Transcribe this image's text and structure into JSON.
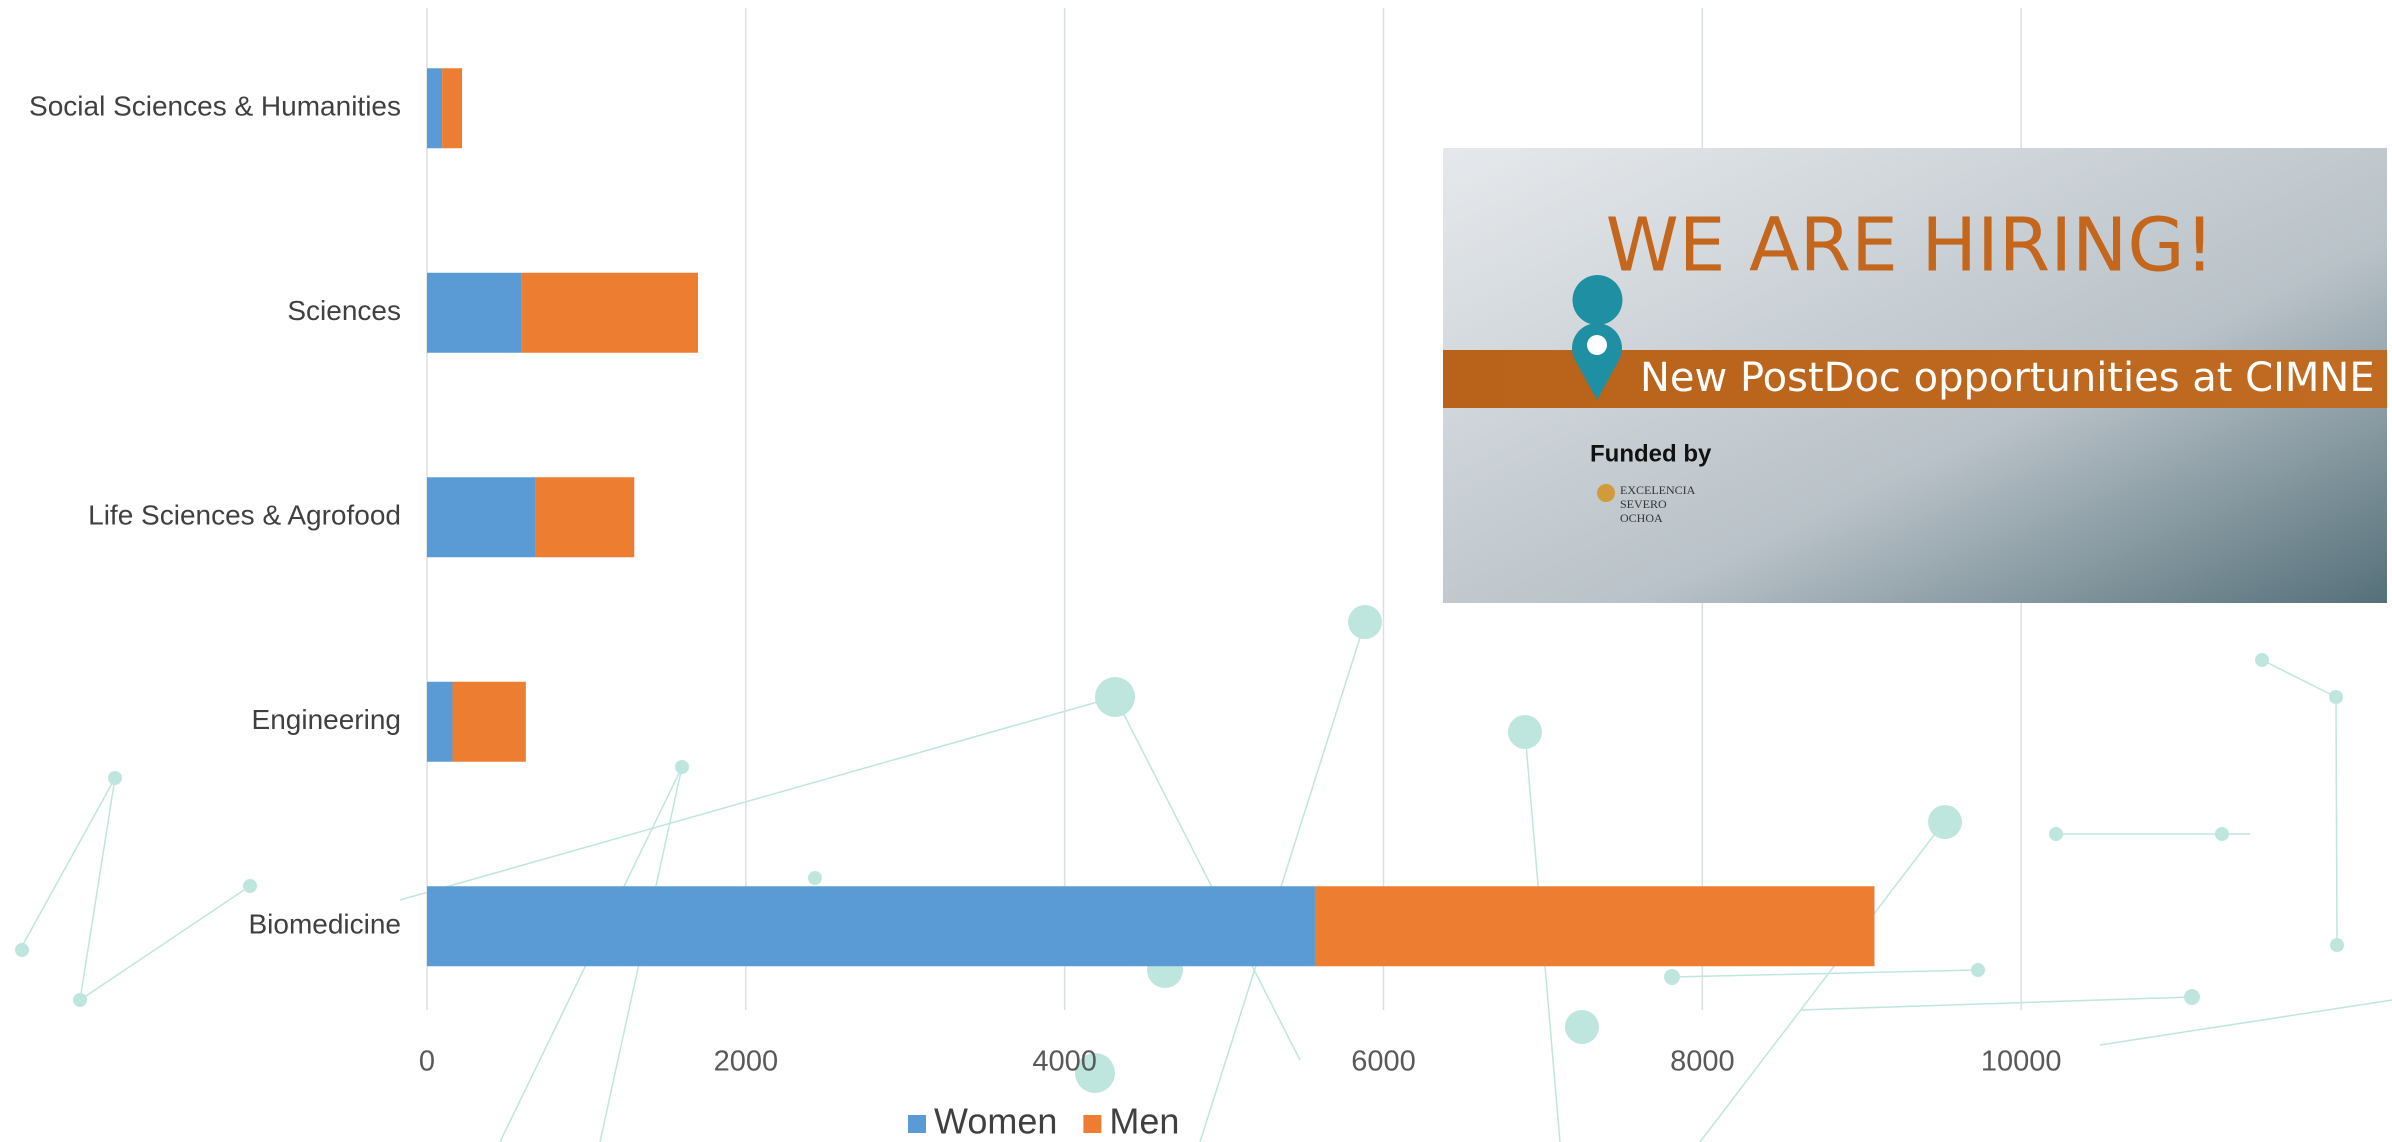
{
  "chart_data": {
    "type": "stacked-bar-horizontal",
    "categories": [
      "Social Sciences & Humanities",
      "Sciences",
      "Life Sciences & Agrofood",
      "Engineering",
      "Biomedicine"
    ],
    "series": [
      {
        "name": "Women",
        "color": "#5b9bd5",
        "values": [
          95,
          590,
          680,
          160,
          5570
        ]
      },
      {
        "name": "Men",
        "color": "#ed7d31",
        "values": [
          125,
          1110,
          620,
          460,
          3510
        ]
      }
    ],
    "xlim": [
      0,
      12000
    ],
    "xticks": [
      0,
      2000,
      4000,
      6000,
      8000,
      10000
    ],
    "grid": true,
    "legend": "bottom"
  },
  "banner": {
    "headline": "WE ARE HIRING!",
    "subline": "New PostDoc opportunities at CIMNE",
    "funded": "Funded by",
    "logo": [
      "EXCELENCIA",
      "SEVERO",
      "OCHOA"
    ]
  }
}
